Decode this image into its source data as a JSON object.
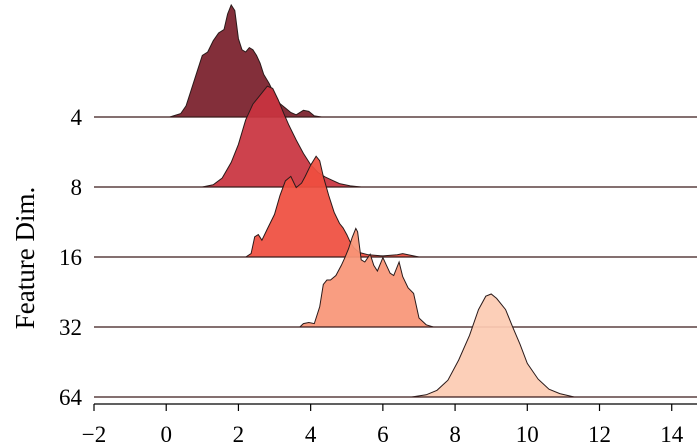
{
  "chart_data": {
    "type": "ridgeline",
    "title": "",
    "xlabel": "",
    "ylabel": "Feature Dim.",
    "xlim": [
      -2,
      14.7
    ],
    "xticks": [
      -2,
      0,
      2,
      4,
      6,
      8,
      10,
      12,
      14
    ],
    "grid": false,
    "legend": "none",
    "series": [
      {
        "name": "4",
        "color": "#7a1f2b",
        "points": [
          [
            0.1,
            0
          ],
          [
            0.4,
            0.03
          ],
          [
            0.55,
            0.1
          ],
          [
            0.7,
            0.25
          ],
          [
            0.85,
            0.4
          ],
          [
            1.0,
            0.55
          ],
          [
            1.15,
            0.58
          ],
          [
            1.3,
            0.68
          ],
          [
            1.45,
            0.75
          ],
          [
            1.6,
            0.78
          ],
          [
            1.7,
            0.92
          ],
          [
            1.8,
            1.0
          ],
          [
            1.9,
            0.95
          ],
          [
            2.0,
            0.7
          ],
          [
            2.1,
            0.6
          ],
          [
            2.2,
            0.58
          ],
          [
            2.3,
            0.62
          ],
          [
            2.4,
            0.6
          ],
          [
            2.5,
            0.55
          ],
          [
            2.6,
            0.48
          ],
          [
            2.7,
            0.38
          ],
          [
            2.85,
            0.3
          ],
          [
            3.0,
            0.2
          ],
          [
            3.15,
            0.12
          ],
          [
            3.3,
            0.08
          ],
          [
            3.45,
            0.04
          ],
          [
            3.6,
            0.02
          ],
          [
            3.8,
            0.06
          ],
          [
            3.95,
            0.05
          ],
          [
            4.1,
            0.01
          ],
          [
            4.3,
            0
          ]
        ]
      },
      {
        "name": "8",
        "color": "#c9343f",
        "points": [
          [
            1.0,
            0
          ],
          [
            1.3,
            0.02
          ],
          [
            1.55,
            0.08
          ],
          [
            1.8,
            0.22
          ],
          [
            2.0,
            0.38
          ],
          [
            2.2,
            0.6
          ],
          [
            2.4,
            0.74
          ],
          [
            2.55,
            0.8
          ],
          [
            2.7,
            0.86
          ],
          [
            2.8,
            0.9
          ],
          [
            2.95,
            0.88
          ],
          [
            3.1,
            0.78
          ],
          [
            3.25,
            0.66
          ],
          [
            3.4,
            0.55
          ],
          [
            3.6,
            0.42
          ],
          [
            3.8,
            0.3
          ],
          [
            4.0,
            0.2
          ],
          [
            4.2,
            0.13
          ],
          [
            4.4,
            0.09
          ],
          [
            4.6,
            0.06
          ],
          [
            4.8,
            0.03
          ],
          [
            5.1,
            0.01
          ],
          [
            5.4,
            0
          ]
        ]
      },
      {
        "name": "16",
        "color": "#ef4f3f",
        "points": [
          [
            2.2,
            0
          ],
          [
            2.35,
            0.03
          ],
          [
            2.45,
            0.18
          ],
          [
            2.55,
            0.2
          ],
          [
            2.65,
            0.15
          ],
          [
            2.8,
            0.25
          ],
          [
            3.0,
            0.38
          ],
          [
            3.15,
            0.55
          ],
          [
            3.3,
            0.68
          ],
          [
            3.45,
            0.72
          ],
          [
            3.6,
            0.62
          ],
          [
            3.75,
            0.66
          ],
          [
            3.85,
            0.72
          ],
          [
            4.0,
            0.82
          ],
          [
            4.15,
            0.9
          ],
          [
            4.25,
            0.86
          ],
          [
            4.35,
            0.72
          ],
          [
            4.5,
            0.55
          ],
          [
            4.65,
            0.4
          ],
          [
            4.8,
            0.3
          ],
          [
            4.9,
            0.26
          ],
          [
            5.0,
            0.2
          ],
          [
            5.1,
            0.13
          ],
          [
            5.2,
            0.08
          ],
          [
            5.35,
            0.04
          ],
          [
            5.6,
            0.02
          ],
          [
            6.0,
            0.01
          ],
          [
            6.4,
            0.02
          ],
          [
            6.55,
            0.03
          ],
          [
            6.7,
            0.02
          ],
          [
            7.0,
            0
          ]
        ]
      },
      {
        "name": "32",
        "color": "#f99677",
        "points": [
          [
            3.7,
            0
          ],
          [
            3.8,
            0.03
          ],
          [
            3.95,
            0.04
          ],
          [
            4.1,
            0.03
          ],
          [
            4.25,
            0.18
          ],
          [
            4.35,
            0.38
          ],
          [
            4.45,
            0.42
          ],
          [
            4.55,
            0.42
          ],
          [
            4.7,
            0.46
          ],
          [
            4.85,
            0.55
          ],
          [
            4.95,
            0.62
          ],
          [
            5.05,
            0.7
          ],
          [
            5.15,
            0.8
          ],
          [
            5.25,
            0.88
          ],
          [
            5.3,
            0.85
          ],
          [
            5.4,
            0.6
          ],
          [
            5.5,
            0.58
          ],
          [
            5.65,
            0.65
          ],
          [
            5.75,
            0.55
          ],
          [
            5.85,
            0.5
          ],
          [
            6.0,
            0.62
          ],
          [
            6.1,
            0.55
          ],
          [
            6.2,
            0.48
          ],
          [
            6.3,
            0.46
          ],
          [
            6.45,
            0.58
          ],
          [
            6.55,
            0.45
          ],
          [
            6.7,
            0.35
          ],
          [
            6.85,
            0.3
          ],
          [
            7.0,
            0.08
          ],
          [
            7.2,
            0.02
          ],
          [
            7.4,
            0
          ]
        ]
      },
      {
        "name": "64",
        "color": "#fccbb3",
        "points": [
          [
            6.8,
            0
          ],
          [
            7.2,
            0.02
          ],
          [
            7.5,
            0.06
          ],
          [
            7.8,
            0.15
          ],
          [
            8.1,
            0.33
          ],
          [
            8.4,
            0.55
          ],
          [
            8.65,
            0.78
          ],
          [
            8.85,
            0.9
          ],
          [
            9.0,
            0.92
          ],
          [
            9.15,
            0.88
          ],
          [
            9.4,
            0.78
          ],
          [
            9.6,
            0.62
          ],
          [
            9.8,
            0.47
          ],
          [
            10.0,
            0.3
          ],
          [
            10.3,
            0.16
          ],
          [
            10.6,
            0.07
          ],
          [
            10.9,
            0.03
          ],
          [
            11.3,
            0
          ]
        ]
      }
    ]
  }
}
